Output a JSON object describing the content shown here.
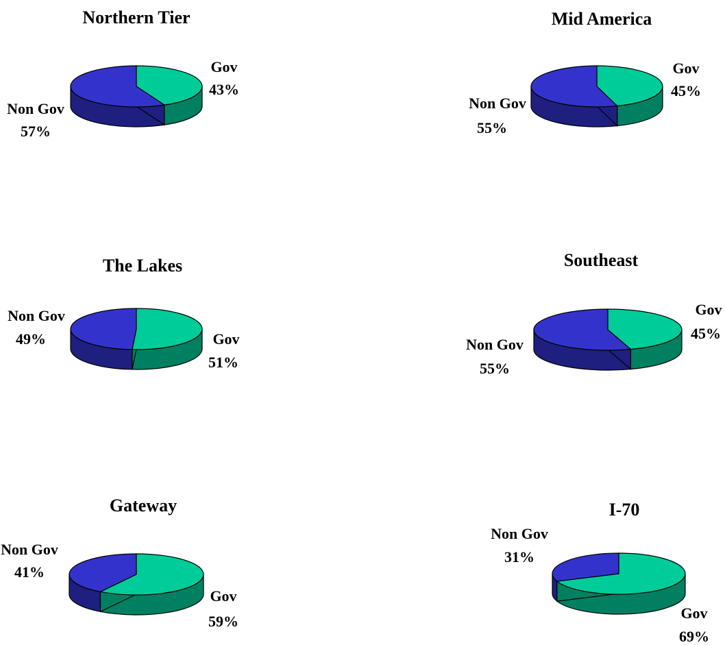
{
  "chart_data": [
    {
      "type": "pie",
      "title": "Northern Tier",
      "slices": [
        {
          "name": "Gov",
          "value": 43,
          "label": "43%"
        },
        {
          "name": "Non Gov",
          "value": 57,
          "label": "57%"
        }
      ]
    },
    {
      "type": "pie",
      "title": "Mid America",
      "slices": [
        {
          "name": "Gov",
          "value": 45,
          "label": "45%"
        },
        {
          "name": "Non Gov",
          "value": 55,
          "label": "55%"
        }
      ]
    },
    {
      "type": "pie",
      "title": "The Lakes",
      "slices": [
        {
          "name": "Gov",
          "value": 51,
          "label": "51%"
        },
        {
          "name": "Non Gov",
          "value": 49,
          "label": "49%"
        }
      ]
    },
    {
      "type": "pie",
      "title": "Southeast",
      "slices": [
        {
          "name": "Gov",
          "value": 45,
          "label": "45%"
        },
        {
          "name": "Non Gov",
          "value": 55,
          "label": "55%"
        }
      ]
    },
    {
      "type": "pie",
      "title": "Gateway",
      "slices": [
        {
          "name": "Gov",
          "value": 59,
          "label": "59%"
        },
        {
          "name": "Non Gov",
          "value": 41,
          "label": "41%"
        }
      ]
    },
    {
      "type": "pie",
      "title": "I-70",
      "slices": [
        {
          "name": "Gov",
          "value": 69,
          "label": "69%"
        },
        {
          "name": "Non Gov",
          "value": 31,
          "label": "31%"
        }
      ]
    }
  ],
  "colors": {
    "gov_top": "#00cc99",
    "gov_side": "#008060",
    "nongov_top": "#3333cc",
    "nongov_side": "#1f1f80",
    "outline": "#000000"
  }
}
